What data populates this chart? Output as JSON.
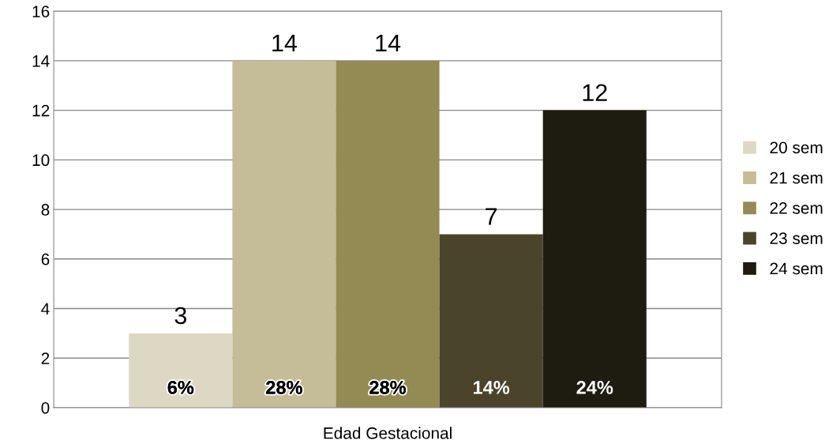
{
  "chart_data": {
    "type": "bar",
    "xlabel": "Edad Gestacional",
    "categories": [
      null
    ],
    "ylim": [
      0,
      16
    ],
    "yticks": [
      0,
      2,
      4,
      6,
      8,
      10,
      12,
      14,
      16
    ],
    "grid": "y",
    "legend": "right",
    "annotations": [
      "6%",
      "28%",
      "28%",
      "14%",
      "24%"
    ],
    "series": [
      {
        "name": "20 sem",
        "color": "#ddd8c4",
        "values": [
          3
        ],
        "value_labels": [
          "3"
        ]
      },
      {
        "name": "21 sem",
        "color": "#c4bd97",
        "values": [
          14
        ],
        "value_labels": [
          "14"
        ]
      },
      {
        "name": "22 sem",
        "color": "#948a54",
        "values": [
          14
        ],
        "value_labels": [
          "14"
        ]
      },
      {
        "name": "23 sem",
        "color": "#4a452a",
        "values": [
          7
        ],
        "value_labels": [
          "7"
        ]
      },
      {
        "name": "24 sem",
        "color": "#1e1c11",
        "values": [
          12
        ],
        "value_labels": [
          "12"
        ]
      }
    ]
  }
}
